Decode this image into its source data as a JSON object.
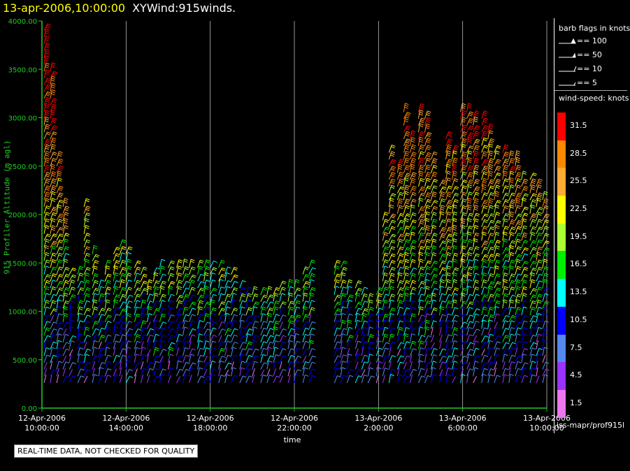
{
  "header": {
    "time": "13-apr-2006,10:00:00",
    "name": "XYWind:915winds."
  },
  "disclaimer": "REAL-TIME DATA, NOT CHECKED FOR QUALITY",
  "legend": {
    "flags_title": "barb flags in knots",
    "flags": [
      {
        "label": "== 100",
        "kind": "pennant"
      },
      {
        "label": "== 50",
        "kind": "pennant-small"
      },
      {
        "label": "== 10",
        "kind": "full-barb"
      },
      {
        "label": "== 5",
        "kind": "half-barb"
      }
    ],
    "speed_title": "wind-speed: knots",
    "speeds": [
      {
        "label": "31.5",
        "color": "#ff0000"
      },
      {
        "label": "28.5",
        "color": "#ff8800"
      },
      {
        "label": "25.5",
        "color": "#ffaa33"
      },
      {
        "label": "22.5",
        "color": "#ffff00"
      },
      {
        "label": "19.5",
        "color": "#aaff33"
      },
      {
        "label": "16.5",
        "color": "#00ee00"
      },
      {
        "label": "13.5",
        "color": "#00ffff"
      },
      {
        "label": "10.5",
        "color": "#0000ff"
      },
      {
        "label": "7.5",
        "color": "#5588ee"
      },
      {
        "label": "4.5",
        "color": "#9933ff"
      },
      {
        "label": "1.5",
        "color": "#ee77ee"
      }
    ],
    "source": "iss-mapr/prof915l"
  },
  "chart_data": {
    "type": "scatter",
    "ylabel": "915 Profiler Altitude (m agl)",
    "xlabel": "time",
    "ylim": [
      0,
      4000
    ],
    "yticks": [
      "0.00",
      "500.00",
      "1000.00",
      "1500.00",
      "2000.00",
      "2500.00",
      "3000.00",
      "3500.00",
      "4000.00"
    ],
    "xticks": [
      {
        "date": "12-Apr-2006",
        "time": "10:00:00"
      },
      {
        "date": "12-Apr-2006",
        "time": "14:00:00"
      },
      {
        "date": "12-Apr-2006",
        "time": "18:00:00"
      },
      {
        "date": "12-Apr-2006",
        "time": "22:00:00"
      },
      {
        "date": "13-Apr-2006",
        "time": "2:00:00"
      },
      {
        "date": "13-Apr-2006",
        "time": "6:00:00"
      },
      {
        "date": "13-Apr-2006",
        "time": "10:00:00"
      }
    ],
    "x_range_hours": [
      0,
      24
    ],
    "grid": "vertical",
    "axis_color": "#22cc22",
    "columns": [
      {
        "t": 0.1,
        "top": 3900
      },
      {
        "t": 0.4,
        "top": 3500
      },
      {
        "t": 0.7,
        "top": 2600
      },
      {
        "t": 1.0,
        "top": 2100
      },
      {
        "t": 1.3,
        "top": 1400
      },
      {
        "t": 1.7,
        "top": 1400
      },
      {
        "t": 2.0,
        "top": 2100
      },
      {
        "t": 2.4,
        "top": 1600
      },
      {
        "t": 2.7,
        "top": 1300
      },
      {
        "t": 3.0,
        "top": 1500
      },
      {
        "t": 3.4,
        "top": 1600
      },
      {
        "t": 3.7,
        "top": 1700
      },
      {
        "t": 4.0,
        "top": 1600
      },
      {
        "t": 4.4,
        "top": 1500
      },
      {
        "t": 4.7,
        "top": 1400
      },
      {
        "t": 5.0,
        "top": 1300
      },
      {
        "t": 5.3,
        "top": 1400
      },
      {
        "t": 5.6,
        "top": 1500
      },
      {
        "t": 6.0,
        "top": 1500
      },
      {
        "t": 6.4,
        "top": 1500
      },
      {
        "t": 6.7,
        "top": 1500
      },
      {
        "t": 7.0,
        "top": 1500
      },
      {
        "t": 7.4,
        "top": 1500
      },
      {
        "t": 7.7,
        "top": 1500
      },
      {
        "t": 8.0,
        "top": 1500
      },
      {
        "t": 8.4,
        "top": 1500
      },
      {
        "t": 8.7,
        "top": 1400
      },
      {
        "t": 9.0,
        "top": 1400
      },
      {
        "t": 9.4,
        "top": 1300
      },
      {
        "t": 9.7,
        "top": 1200
      },
      {
        "t": 10.0,
        "top": 1200
      },
      {
        "t": 10.4,
        "top": 1200
      },
      {
        "t": 10.7,
        "top": 1200
      },
      {
        "t": 11.0,
        "top": 1200
      },
      {
        "t": 11.3,
        "top": 1300
      },
      {
        "t": 11.7,
        "top": 1300
      },
      {
        "t": 12.0,
        "top": 1300
      },
      {
        "t": 12.4,
        "top": 1400
      },
      {
        "t": 12.7,
        "top": 1500
      },
      {
        "t": 13.9,
        "top": 1500
      },
      {
        "t": 14.2,
        "top": 1500
      },
      {
        "t": 14.5,
        "top": 1300
      },
      {
        "t": 14.9,
        "top": 1300
      },
      {
        "t": 15.2,
        "top": 1200
      },
      {
        "t": 15.5,
        "top": 1100
      },
      {
        "t": 15.9,
        "top": 1200
      },
      {
        "t": 16.2,
        "top": 2000
      },
      {
        "t": 16.5,
        "top": 2700
      },
      {
        "t": 16.9,
        "top": 2500
      },
      {
        "t": 17.2,
        "top": 3100
      },
      {
        "t": 17.5,
        "top": 2800
      },
      {
        "t": 17.9,
        "top": 3100
      },
      {
        "t": 18.2,
        "top": 3000
      },
      {
        "t": 18.5,
        "top": 2600
      },
      {
        "t": 18.9,
        "top": 2300
      },
      {
        "t": 19.2,
        "top": 2800
      },
      {
        "t": 19.5,
        "top": 2700
      },
      {
        "t": 19.9,
        "top": 3100
      },
      {
        "t": 20.2,
        "top": 3100
      },
      {
        "t": 20.5,
        "top": 3000
      },
      {
        "t": 20.9,
        "top": 3000
      },
      {
        "t": 21.2,
        "top": 2900
      },
      {
        "t": 21.5,
        "top": 2700
      },
      {
        "t": 21.9,
        "top": 2700
      },
      {
        "t": 22.2,
        "top": 2600
      },
      {
        "t": 22.5,
        "top": 2600
      },
      {
        "t": 22.8,
        "top": 2400
      },
      {
        "t": 23.2,
        "top": 2400
      },
      {
        "t": 23.5,
        "top": 2300
      },
      {
        "t": 23.8,
        "top": 2200
      }
    ]
  }
}
